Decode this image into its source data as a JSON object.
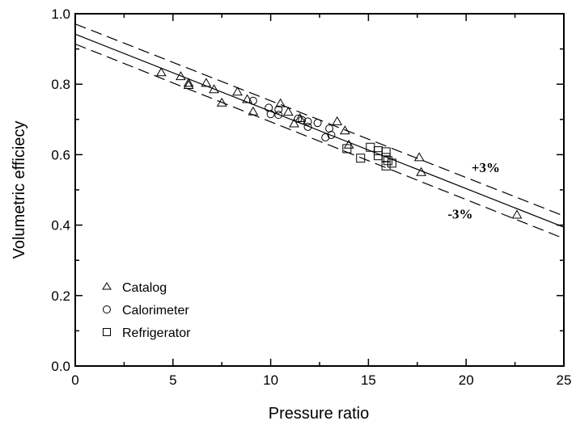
{
  "chart_data": {
    "type": "scatter",
    "title": "",
    "xlabel": "Pressure ratio",
    "ylabel": "Volumetric efficiecy",
    "xlim": [
      0,
      25
    ],
    "ylim": [
      0.0,
      1.0
    ],
    "xticks": [
      "0",
      "5",
      "10",
      "15",
      "20",
      "25"
    ],
    "yticks": [
      "0.0",
      "0.2",
      "0.4",
      "0.6",
      "0.8",
      "1.0"
    ],
    "grid": false,
    "legend_position": "bottom-left",
    "series": [
      {
        "name": "Catalog",
        "marker": "triangle",
        "points": [
          [
            4.4,
            0.833
          ],
          [
            5.4,
            0.822
          ],
          [
            5.8,
            0.803
          ],
          [
            5.8,
            0.797
          ],
          [
            6.7,
            0.803
          ],
          [
            7.1,
            0.785
          ],
          [
            7.5,
            0.747
          ],
          [
            8.3,
            0.778
          ],
          [
            8.8,
            0.757
          ],
          [
            9.1,
            0.722
          ],
          [
            10.5,
            0.745
          ],
          [
            10.9,
            0.721
          ],
          [
            11.2,
            0.688
          ],
          [
            11.5,
            0.703
          ],
          [
            13.4,
            0.694
          ],
          [
            13.8,
            0.668
          ],
          [
            14.0,
            0.628
          ],
          [
            17.6,
            0.592
          ],
          [
            17.7,
            0.55
          ],
          [
            22.6,
            0.429
          ]
        ]
      },
      {
        "name": "Calorimeter",
        "marker": "circle",
        "points": [
          [
            9.1,
            0.753
          ],
          [
            9.9,
            0.733
          ],
          [
            10.0,
            0.715
          ],
          [
            10.4,
            0.728
          ],
          [
            10.4,
            0.713
          ],
          [
            11.4,
            0.702
          ],
          [
            11.6,
            0.698
          ],
          [
            11.9,
            0.694
          ],
          [
            11.9,
            0.679
          ],
          [
            12.4,
            0.69
          ],
          [
            12.8,
            0.649
          ],
          [
            13.0,
            0.674
          ],
          [
            13.1,
            0.656
          ]
        ]
      },
      {
        "name": "Refrigerator",
        "marker": "square",
        "points": [
          [
            13.9,
            0.617
          ],
          [
            14.6,
            0.59
          ],
          [
            15.1,
            0.621
          ],
          [
            15.5,
            0.611
          ],
          [
            15.5,
            0.597
          ],
          [
            15.9,
            0.608
          ],
          [
            15.9,
            0.592
          ],
          [
            16.0,
            0.583
          ],
          [
            15.9,
            0.568
          ],
          [
            16.2,
            0.576
          ]
        ]
      }
    ],
    "lines": [
      {
        "style": "solid",
        "x": [
          0,
          25
        ],
        "y": [
          0.942,
          0.394
        ]
      },
      {
        "style": "dashed",
        "x": [
          0,
          25
        ],
        "y": [
          0.971,
          0.426
        ]
      },
      {
        "style": "dashed",
        "x": [
          0,
          25
        ],
        "y": [
          0.914,
          0.362
        ]
      }
    ],
    "annotations": [
      {
        "text": "+3%",
        "x": 21.0,
        "y": 0.551
      },
      {
        "text": "-3%",
        "x": 19.7,
        "y": 0.419
      }
    ]
  }
}
